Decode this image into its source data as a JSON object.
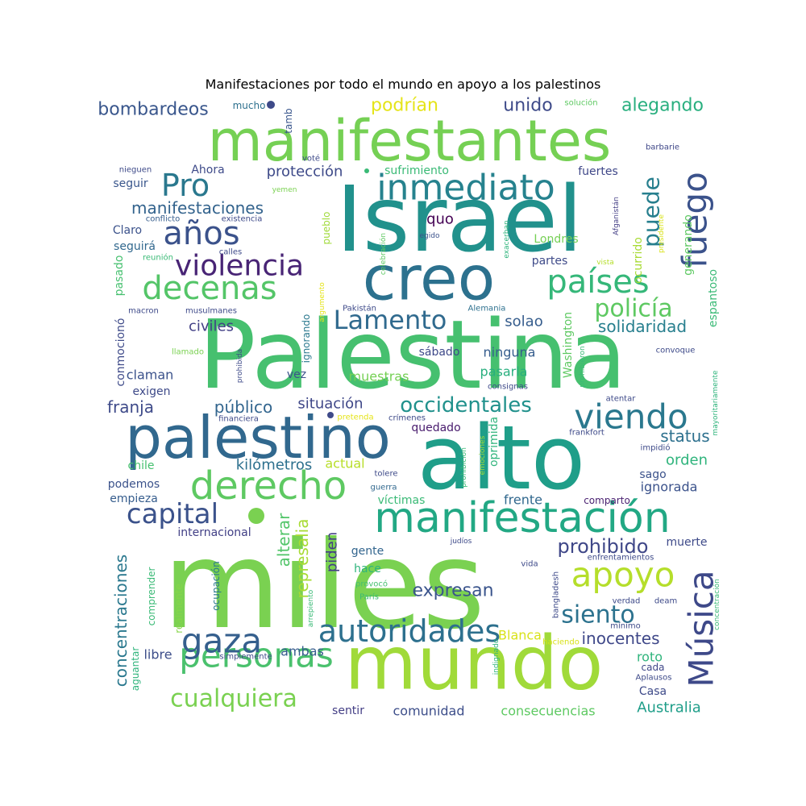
{
  "title": "Manifestaciones por todo el mundo en apoyo a los palestinos",
  "words": [
    {
      "text": "Palestina",
      "color": "#46c06f"
    },
    {
      "text": "miles",
      "color": "#7ad151"
    },
    {
      "text": "Israel",
      "color": "#21918c"
    },
    {
      "text": "alto",
      "color": "#1f9e89"
    },
    {
      "text": "mundo",
      "color": "#a0da39"
    },
    {
      "text": "manifestantes",
      "color": "#75d054"
    },
    {
      "text": "creo",
      "color": "#2c718e"
    },
    {
      "text": "palestino",
      "color": "#31688e"
    },
    {
      "text": "manifestación",
      "color": "#22a884"
    },
    {
      "text": "derecho",
      "color": "#5ec962"
    },
    {
      "text": "inmediato",
      "color": "#26828e"
    },
    {
      "text": "personas",
      "color": "#4ac16d"
    },
    {
      "text": "viendo",
      "color": "#2a788e"
    },
    {
      "text": "gaza",
      "color": "#355f8d"
    },
    {
      "text": "apoyo",
      "color": "#b5de2b"
    },
    {
      "text": "autoridades",
      "color": "#2d708e"
    },
    {
      "text": "decenas",
      "color": "#54c568"
    },
    {
      "text": "fuego",
      "color": "#3b528b"
    },
    {
      "text": "países",
      "color": "#35b779"
    },
    {
      "text": "Música",
      "color": "#3e4989"
    },
    {
      "text": "violencia",
      "color": "#482475"
    },
    {
      "text": "años",
      "color": "#3b528b"
    },
    {
      "text": "capital",
      "color": "#3b528b"
    },
    {
      "text": "Pro",
      "color": "#2a788e"
    },
    {
      "text": "cualquiera",
      "color": "#7ad151"
    },
    {
      "text": "Lamento",
      "color": "#306a8e"
    },
    {
      "text": "occidentales",
      "color": "#21918c"
    },
    {
      "text": "siento",
      "color": "#2c728e"
    },
    {
      "text": "policía",
      "color": "#5ec962"
    },
    {
      "text": "puede",
      "color": "#277f8e"
    },
    {
      "text": "prohibido",
      "color": "#3f4788"
    },
    {
      "text": "expresan",
      "color": "#3a548c"
    },
    {
      "text": "concentraciones",
      "color": "#2a788e"
    },
    {
      "text": "manifestaciones",
      "color": "#33638d"
    },
    {
      "text": "bombardeos",
      "color": "#39568c"
    },
    {
      "text": "podrían",
      "color": "#e5e419"
    },
    {
      "text": "alegando",
      "color": "#29af7f"
    },
    {
      "text": "unido",
      "color": "#3e4a89"
    },
    {
      "text": "protección",
      "color": "#3e4a89"
    },
    {
      "text": "público",
      "color": "#32658e"
    },
    {
      "text": "kilómetros",
      "color": "#2d708e"
    },
    {
      "text": "status",
      "color": "#2d708e"
    },
    {
      "text": "solidaridad",
      "color": "#277f8e"
    },
    {
      "text": "civiles",
      "color": "#424086"
    },
    {
      "text": "franja",
      "color": "#3e4a89"
    },
    {
      "text": "situación",
      "color": "#3f4788"
    },
    {
      "text": "solao",
      "color": "#365d8d"
    },
    {
      "text": "alterar",
      "color": "#52c569"
    },
    {
      "text": "represalia",
      "color": "#a8db34"
    },
    {
      "text": "inocentes",
      "color": "#3f4889"
    },
    {
      "text": "Australia",
      "color": "#1f9e89"
    },
    {
      "text": "comunidad",
      "color": "#3d4e8a"
    },
    {
      "text": "consecuencias",
      "color": "#5ec962"
    },
    {
      "text": "Blanca",
      "color": "#d8e219"
    },
    {
      "text": "orden",
      "color": "#2fb47c"
    },
    {
      "text": "ignorada",
      "color": "#3b528b"
    },
    {
      "text": "piden",
      "color": "#433e85"
    },
    {
      "text": "ambas",
      "color": "#365c8d"
    },
    {
      "text": "libre",
      "color": "#3d4e8a"
    },
    {
      "text": "internacional",
      "color": "#424086"
    },
    {
      "text": "quo",
      "color": "#440154"
    },
    {
      "text": "claman",
      "color": "#3b528b"
    },
    {
      "text": "exigen",
      "color": "#3e4a89"
    },
    {
      "text": "muestras",
      "color": "#75d054"
    },
    {
      "text": "pasarla",
      "color": "#29af7f"
    },
    {
      "text": "ninguna",
      "color": "#365d8d"
    },
    {
      "text": "sábado",
      "color": "#3e4989"
    },
    {
      "text": "actual",
      "color": "#b8de29"
    },
    {
      "text": "quedado",
      "color": "#481b6d"
    },
    {
      "text": "hace",
      "color": "#2fb47c"
    },
    {
      "text": "gente",
      "color": "#32658e"
    },
    {
      "text": "muerte",
      "color": "#3e4a89"
    },
    {
      "text": "frente",
      "color": "#31688e"
    },
    {
      "text": "víctimas",
      "color": "#3aba76"
    },
    {
      "text": "oprimida",
      "color": "#2fb47c"
    },
    {
      "text": "Washington",
      "color": "#5ec962"
    },
    {
      "text": "espantoso",
      "color": "#3aba76"
    },
    {
      "text": "ocurrido",
      "color": "#a8db34"
    },
    {
      "text": "generando",
      "color": "#5ec962"
    },
    {
      "text": "fuertes",
      "color": "#3f4788"
    },
    {
      "text": "sufrimiento",
      "color": "#3aba76"
    },
    {
      "text": "Ahora",
      "color": "#3e4a89"
    },
    {
      "text": "seguir",
      "color": "#39568c"
    },
    {
      "text": "Claro",
      "color": "#3b528b"
    },
    {
      "text": "seguirá",
      "color": "#31688e"
    },
    {
      "text": "pasado",
      "color": "#46c06f"
    },
    {
      "text": "conmocionó",
      "color": "#3e4a89"
    },
    {
      "text": "chile",
      "color": "#46c06f"
    },
    {
      "text": "podemos",
      "color": "#3b528b"
    },
    {
      "text": "empieza",
      "color": "#365d8d"
    },
    {
      "text": "comprender",
      "color": "#3aba76"
    },
    {
      "text": "aguantar",
      "color": "#2fb47c"
    },
    {
      "text": "realmente",
      "color": "#86d549"
    },
    {
      "text": "ocupación",
      "color": "#2a788e"
    },
    {
      "text": "roto",
      "color": "#2fb47c"
    },
    {
      "text": "cada",
      "color": "#3f4788"
    },
    {
      "text": "Casa",
      "color": "#3e4a89"
    },
    {
      "text": "sentir",
      "color": "#433e85"
    },
    {
      "text": "sago",
      "color": "#3b528b"
    },
    {
      "text": "comparto",
      "color": "#481f70"
    },
    {
      "text": "Londres",
      "color": "#75d054"
    },
    {
      "text": "partes",
      "color": "#3e4a89"
    },
    {
      "text": "pueblo",
      "color": "#a0da39"
    },
    {
      "text": "mucho",
      "color": "#2d708e"
    },
    {
      "text": "tamb",
      "color": "#39568c"
    },
    {
      "text": "solución",
      "color": "#5ec962"
    },
    {
      "text": "barbarie",
      "color": "#3f4788"
    },
    {
      "text": "voté",
      "color": "#3e4a89"
    },
    {
      "text": "nieguen",
      "color": "#3e4a89"
    },
    {
      "text": "yemen",
      "color": "#7ad151"
    },
    {
      "text": "conflicto",
      "color": "#365d8d"
    },
    {
      "text": "existencia",
      "color": "#3e4a89"
    },
    {
      "text": "calles",
      "color": "#3e4a89"
    },
    {
      "text": "reunión",
      "color": "#3aba76"
    },
    {
      "text": "celebración",
      "color": "#5ec962"
    },
    {
      "text": "egido",
      "color": "#3b528b"
    },
    {
      "text": "exacerban",
      "color": "#2fb47c"
    },
    {
      "text": "Afganistán",
      "color": "#433e85"
    },
    {
      "text": "presidente",
      "color": "#d8e219"
    },
    {
      "text": "vista",
      "color": "#b5de2b"
    },
    {
      "text": "macron",
      "color": "#3e4a89"
    },
    {
      "text": "musulmanes",
      "color": "#3e4a89"
    },
    {
      "text": "Pakistán",
      "color": "#3e4a89"
    },
    {
      "text": "argumento",
      "color": "#e5e419"
    },
    {
      "text": "ignorando",
      "color": "#2a788e"
    },
    {
      "text": "Alemania",
      "color": "#2d708e"
    },
    {
      "text": "llamado",
      "color": "#7ad151"
    },
    {
      "text": "prohibida",
      "color": "#3e4a89"
    },
    {
      "text": "vez",
      "color": "#3b528b"
    },
    {
      "text": "prohibieron",
      "color": "#3aba76"
    },
    {
      "text": "consignas",
      "color": "#3e4a89"
    },
    {
      "text": "convoque",
      "color": "#3e4a89"
    },
    {
      "text": "atentar",
      "color": "#3e4a89"
    },
    {
      "text": "mayoritariamente",
      "color": "#2fb47c"
    },
    {
      "text": "frankfort",
      "color": "#3e4a89"
    },
    {
      "text": "impidió",
      "color": "#3e4a89"
    },
    {
      "text": "financiera",
      "color": "#3e4a89"
    },
    {
      "text": "pretenda",
      "color": "#e5e419"
    },
    {
      "text": "crímenes",
      "color": "#3e4a89"
    },
    {
      "text": "emociones",
      "color": "#a0da39"
    },
    {
      "text": "prohibición",
      "color": "#3aba76"
    },
    {
      "text": "tolere",
      "color": "#3e4a89"
    },
    {
      "text": "guerra",
      "color": "#31688e"
    },
    {
      "text": "judíos",
      "color": "#3e4a89"
    },
    {
      "text": "arrepiento",
      "color": "#3aba76"
    },
    {
      "text": "provocó",
      "color": "#46c06f"
    },
    {
      "text": "París",
      "color": "#3aba76"
    },
    {
      "text": "vida",
      "color": "#3e4a89"
    },
    {
      "text": "enfrentamientos",
      "color": "#3e4a89"
    },
    {
      "text": "bangladesh",
      "color": "#3e4a89"
    },
    {
      "text": "indignado",
      "color": "#2fb47c"
    },
    {
      "text": "verdad",
      "color": "#3e4a89"
    },
    {
      "text": "deam",
      "color": "#3e4a89"
    },
    {
      "text": "mínimo",
      "color": "#3e4a89"
    },
    {
      "text": "concentración",
      "color": "#3aba76"
    },
    {
      "text": "haciendo",
      "color": "#d8e219"
    },
    {
      "text": "Aplausos",
      "color": "#3e4a89"
    },
    {
      "text": "simplemente",
      "color": "#3e4a89"
    }
  ]
}
